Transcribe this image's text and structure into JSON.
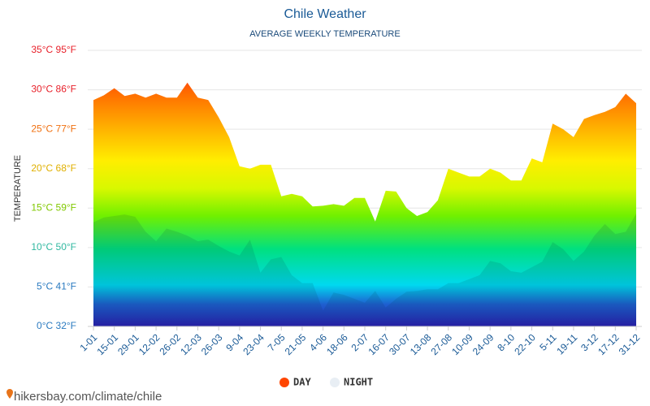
{
  "chart_data": {
    "type": "area",
    "title": "Chile Weather",
    "subtitle": "AVERAGE WEEKLY TEMPERATURE",
    "y_label": "TEMPERATURE",
    "categories": [
      "1-01",
      null,
      "15-01",
      null,
      "29-01",
      null,
      "12-02",
      null,
      "26-02",
      null,
      "12-03",
      null,
      "26-03",
      null,
      "9-04",
      null,
      "23-04",
      null,
      "7-05",
      null,
      "21-05",
      null,
      "4-06",
      null,
      "18-06",
      null,
      "2-07",
      null,
      "16-07",
      null,
      "30-07",
      null,
      "13-08",
      null,
      "27-08",
      null,
      "10-09",
      null,
      "24-09",
      null,
      "8-10",
      null,
      "22-10",
      null,
      "5-11",
      null,
      "19-11",
      null,
      "3-12",
      null,
      "17-12",
      null,
      "31-12"
    ],
    "series": [
      {
        "name": "DAY",
        "color": "#ff4500",
        "values": [
          28.7,
          29.3,
          30.2,
          29.2,
          29.5,
          29,
          29.5,
          29,
          29,
          30.9,
          29,
          28.7,
          26.5,
          24,
          20.3,
          20,
          20.5,
          20.5,
          16.5,
          16.8,
          16.5,
          15.2,
          15.3,
          15.5,
          15.3,
          16.3,
          16.3,
          13.3,
          17.2,
          17.1,
          15,
          14,
          14.5,
          16,
          20,
          19.5,
          19,
          19,
          20,
          19.5,
          18.5,
          18.5,
          21.3,
          20.8,
          25.7,
          25,
          24,
          26.3,
          26.8,
          27.2,
          27.8,
          29.5,
          28.3
        ]
      },
      {
        "name": "NIGHT",
        "color": "#e8eef4",
        "values": [
          13.2,
          13.8,
          14,
          14.2,
          13.9,
          12,
          10.8,
          12.4,
          12,
          11.5,
          10.8,
          11,
          10.2,
          9.5,
          9,
          11,
          6.8,
          8.5,
          8.8,
          6.5,
          5.5,
          5.5,
          2,
          4.3,
          4,
          3.5,
          3,
          4.5,
          2.4,
          3.5,
          4.4,
          4.5,
          4.7,
          4.7,
          5.5,
          5.5,
          6,
          6.5,
          8.3,
          8,
          7,
          6.8,
          7.5,
          8.2,
          10.7,
          9.8,
          8.3,
          9.5,
          11.5,
          13,
          11.7,
          12,
          14.3
        ]
      }
    ],
    "ylim": [
      0,
      35
    ],
    "yticks": [
      {
        "value": 0,
        "label": "0°C 32°F"
      },
      {
        "value": 5,
        "label": "5°C 41°F"
      },
      {
        "value": 10,
        "label": "10°C 50°F"
      },
      {
        "value": 15,
        "label": "15°C 59°F"
      },
      {
        "value": 20,
        "label": "20°C 68°F"
      },
      {
        "value": 25,
        "label": "25°C 77°F"
      },
      {
        "value": 30,
        "label": "30°C 86°F"
      },
      {
        "value": 35,
        "label": "35°C 95°F"
      }
    ],
    "grid": true,
    "legend": "bottom",
    "source": "hikersbay.com/climate/chile"
  }
}
